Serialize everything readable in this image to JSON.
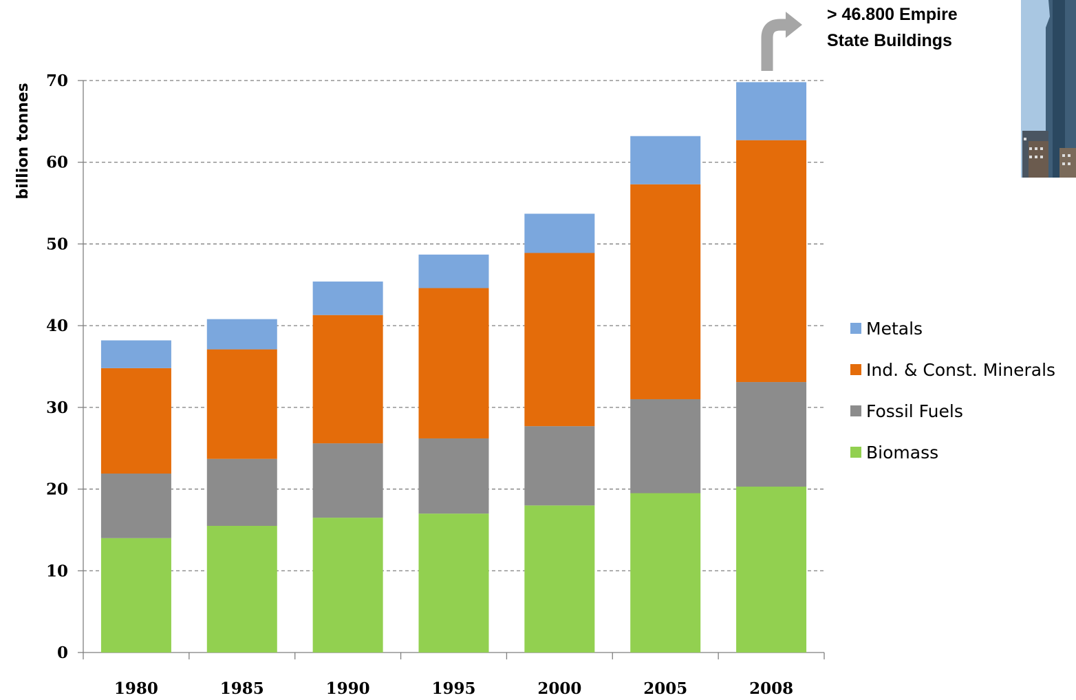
{
  "chart_data": {
    "type": "bar",
    "stacked": true,
    "categories": [
      "1980",
      "1985",
      "1990",
      "1995",
      "2000",
      "2005",
      "2008"
    ],
    "series": [
      {
        "name": "Biomass",
        "color": "#92D050",
        "values": [
          14.0,
          15.5,
          16.5,
          17.0,
          18.0,
          19.5,
          20.3
        ]
      },
      {
        "name": "Fossil Fuels",
        "color": "#8C8C8C",
        "values": [
          7.9,
          8.2,
          9.1,
          9.2,
          9.7,
          11.5,
          12.8
        ]
      },
      {
        "name": "Ind. & Const. Minerals",
        "color": "#E46C0A",
        "values": [
          12.9,
          13.4,
          15.7,
          18.4,
          21.2,
          26.3,
          29.6
        ]
      },
      {
        "name": "Metals",
        "color": "#7BA7DD",
        "values": [
          3.4,
          3.7,
          4.1,
          4.1,
          4.8,
          5.9,
          7.1
        ]
      }
    ],
    "ylabel": "billion tonnes",
    "xlabel": "",
    "title": "",
    "ylim": [
      0,
      70
    ],
    "yticks": [
      "0",
      "10",
      "20",
      "30",
      "40",
      "50",
      "60",
      "70"
    ],
    "grid": "horizontal dashed",
    "legend_position": "right",
    "legend_order": [
      "Metals",
      "Ind. & Const. Minerals",
      "Fossil Fuels",
      "Biomass"
    ],
    "annotation": {
      "line1": "> 46.800 Empire",
      "line2": "State Buildings"
    }
  },
  "colors": {
    "arrow": "#A6A6A6",
    "grid": "#7F7F7F",
    "axis": "#7F7F7F"
  },
  "image": {
    "name": "city-skyline-photo"
  }
}
